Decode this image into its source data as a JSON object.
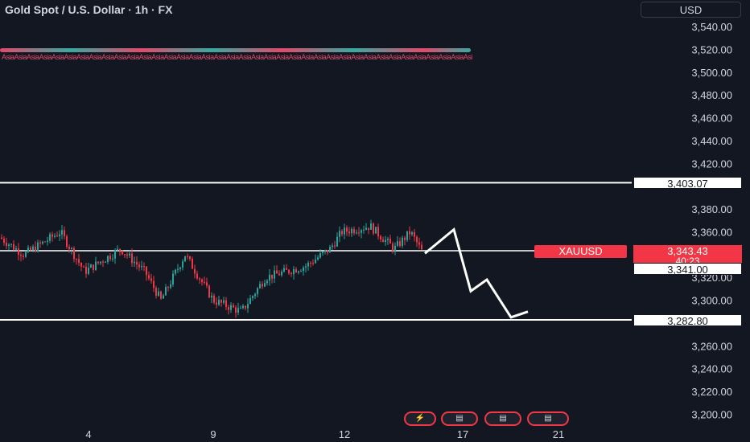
{
  "header": {
    "title": "Gold Spot / U.S. Dollar · 1h · FX",
    "currency": "USD"
  },
  "price_axis": {
    "ticks": [
      "3,540.00",
      "3,520.00",
      "3,500.00",
      "3,480.00",
      "3,460.00",
      "3,440.00",
      "3,420.00",
      "3,380.00",
      "3,360.00",
      "3,320.00",
      "3,300.00",
      "3,260.00",
      "3,240.00",
      "3,220.00",
      "3,200.00"
    ],
    "tick_values": [
      3540,
      3520,
      3500,
      3480,
      3460,
      3440,
      3420,
      3380,
      3360,
      3320,
      3300,
      3260,
      3240,
      3220,
      3200
    ]
  },
  "time_axis": {
    "ticks": [
      "4",
      "9",
      "12",
      "17",
      "21"
    ]
  },
  "levels": {
    "resistance": {
      "label": "3,403.07",
      "value": 3403.07
    },
    "support": {
      "label": "3,282.80",
      "value": 3282.8
    },
    "mid": {
      "label": "3,341.00",
      "value": 3341.0
    }
  },
  "symbol_tag": {
    "name": "XAUUSD",
    "price": "3,343.43",
    "countdown": "40:23",
    "value": 3343.43
  },
  "session_labels": "AsiaAsiaAsiaAsiaAsiaAsiaAsiaAsiaAsiaAsiaAsiaAsiaAsiaAsiaAsiaAsiaAsiaAsiaAsiaAsiaAsiaAsiaAsiaAsiaAsiaAsiaAsiaAsiaAsiaAsiaAsiaAsiaAsiaAsiaAsiaAsiaAsiaAsiaAsia",
  "projection": {
    "points": [
      3341,
      3362,
      3308,
      3318,
      3285,
      3290
    ]
  },
  "colors": {
    "background": "#131722",
    "up": "#26a69a",
    "down": "#f23645",
    "line": "#ffffff"
  },
  "icons": [
    "lightning-icon",
    "us-flag-icon",
    "us-flag-icon",
    "us-flag-icon"
  ]
}
